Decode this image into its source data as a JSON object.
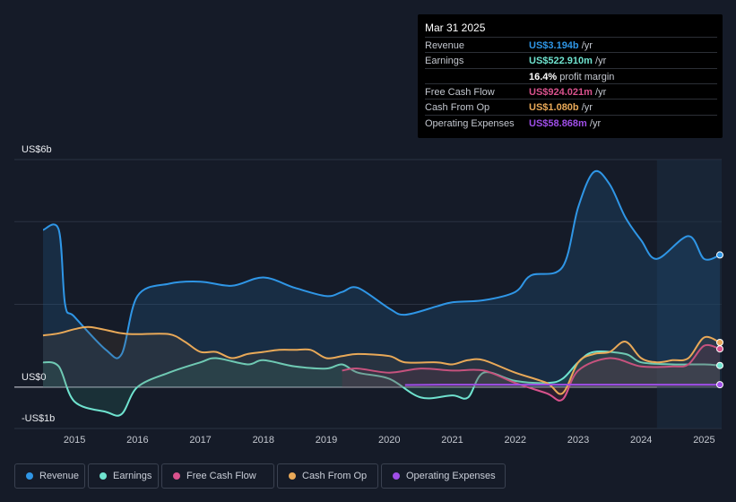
{
  "tooltip": {
    "date": "Mar 31 2025",
    "rows": [
      {
        "label": "Revenue",
        "value": "US$3.194b",
        "unit": " /yr",
        "color": "#2f96e6"
      },
      {
        "label": "Earnings",
        "value": "US$522.910m",
        "unit": " /yr",
        "color": "#6fe3cf"
      },
      {
        "label": "",
        "value": "16.4%",
        "unit": " profit margin",
        "color": "#ffffff"
      },
      {
        "label": "Free Cash Flow",
        "value": "US$924.021m",
        "unit": " /yr",
        "color": "#d9528d"
      },
      {
        "label": "Cash From Op",
        "value": "US$1.080b",
        "unit": " /yr",
        "color": "#e9a958"
      },
      {
        "label": "Operating Expenses",
        "value": "US$58.868m",
        "unit": " /yr",
        "color": "#9f4ee8"
      }
    ]
  },
  "legend": [
    {
      "label": "Revenue",
      "color": "#2f96e6"
    },
    {
      "label": "Earnings",
      "color": "#6fe3cf"
    },
    {
      "label": "Free Cash Flow",
      "color": "#d9528d"
    },
    {
      "label": "Cash From Op",
      "color": "#e9a958"
    },
    {
      "label": "Operating Expenses",
      "color": "#9f4ee8"
    }
  ],
  "chart_data": {
    "type": "area",
    "title": "",
    "xlabel": "",
    "ylabel": "",
    "y_tick_labels": [
      "US$6b",
      "US$0",
      "-US$1b"
    ],
    "x_tick_labels": [
      "2015",
      "2016",
      "2017",
      "2018",
      "2019",
      "2020",
      "2021",
      "2022",
      "2023",
      "2024",
      "2025"
    ],
    "xlim": [
      2014.5,
      2025.25
    ],
    "ylim": [
      -1,
      5.5
    ],
    "units": "US$ billions",
    "forecast_start": 2024.25,
    "series": [
      {
        "name": "Revenue",
        "color": "#2f96e6",
        "x": [
          2014.5,
          2014.75,
          2014.85,
          2015.0,
          2015.5,
          2015.75,
          2016.0,
          2016.5,
          2017.0,
          2017.5,
          2018.0,
          2018.5,
          2019.0,
          2019.25,
          2019.5,
          2020.0,
          2020.25,
          2020.75,
          2021.0,
          2021.5,
          2022.0,
          2022.25,
          2022.75,
          2023.0,
          2023.25,
          2023.5,
          2023.75,
          2024.0,
          2024.25,
          2024.75,
          2025.0,
          2025.25
        ],
        "values": [
          3.8,
          3.8,
          2.0,
          1.7,
          0.9,
          0.8,
          2.2,
          2.5,
          2.55,
          2.45,
          2.65,
          2.4,
          2.2,
          2.3,
          2.4,
          1.9,
          1.75,
          1.95,
          2.05,
          2.1,
          2.3,
          2.7,
          2.9,
          4.35,
          5.2,
          4.9,
          4.1,
          3.55,
          3.1,
          3.65,
          3.1,
          3.194
        ]
      },
      {
        "name": "Earnings",
        "color": "#6fe3cf",
        "x": [
          2014.5,
          2014.75,
          2015.0,
          2015.5,
          2015.75,
          2016.0,
          2016.5,
          2017.0,
          2017.25,
          2017.75,
          2018.0,
          2018.5,
          2019.0,
          2019.25,
          2019.5,
          2020.0,
          2020.5,
          2021.0,
          2021.25,
          2021.5,
          2022.0,
          2022.5,
          2022.75,
          2023.0,
          2023.25,
          2023.75,
          2024.0,
          2024.5,
          2025.0,
          2025.25
        ],
        "values": [
          0.6,
          0.5,
          -0.35,
          -0.6,
          -0.65,
          0.0,
          0.35,
          0.6,
          0.7,
          0.55,
          0.65,
          0.5,
          0.45,
          0.55,
          0.35,
          0.2,
          -0.25,
          -0.2,
          -0.25,
          0.35,
          0.15,
          0.1,
          0.2,
          0.6,
          0.85,
          0.8,
          0.6,
          0.55,
          0.55,
          0.523
        ]
      },
      {
        "name": "Free Cash Flow",
        "color": "#d9528d",
        "x": [
          2019.25,
          2019.5,
          2020.0,
          2020.5,
          2021.0,
          2021.5,
          2022.0,
          2022.5,
          2022.75,
          2023.0,
          2023.5,
          2024.0,
          2024.5,
          2024.75,
          2025.0,
          2025.25
        ],
        "values": [
          0.4,
          0.45,
          0.35,
          0.45,
          0.4,
          0.4,
          0.1,
          -0.15,
          -0.3,
          0.4,
          0.7,
          0.5,
          0.5,
          0.55,
          1.0,
          0.924
        ]
      },
      {
        "name": "Cash From Op",
        "color": "#e9a958",
        "x": [
          2014.5,
          2014.75,
          2015.0,
          2015.25,
          2015.75,
          2016.0,
          2016.5,
          2016.75,
          2017.0,
          2017.25,
          2017.5,
          2017.75,
          2018.0,
          2018.25,
          2018.5,
          2018.75,
          2019.0,
          2019.25,
          2019.5,
          2020.0,
          2020.25,
          2020.75,
          2021.0,
          2021.25,
          2021.5,
          2022.0,
          2022.5,
          2022.75,
          2023.0,
          2023.25,
          2023.5,
          2023.75,
          2024.0,
          2024.25,
          2024.5,
          2024.75,
          2025.0,
          2025.25
        ],
        "values": [
          1.25,
          1.3,
          1.4,
          1.45,
          1.3,
          1.28,
          1.28,
          1.1,
          0.85,
          0.85,
          0.7,
          0.8,
          0.85,
          0.9,
          0.9,
          0.9,
          0.7,
          0.75,
          0.8,
          0.75,
          0.6,
          0.6,
          0.55,
          0.65,
          0.65,
          0.35,
          0.1,
          -0.15,
          0.6,
          0.8,
          0.85,
          1.1,
          0.7,
          0.6,
          0.65,
          0.7,
          1.2,
          1.08
        ]
      },
      {
        "name": "Operating Expenses",
        "color": "#9f4ee8",
        "x": [
          2020.25,
          2021.0,
          2022.0,
          2023.0,
          2024.0,
          2025.0,
          2025.25
        ],
        "values": [
          0.05,
          0.06,
          0.06,
          0.06,
          0.06,
          0.06,
          0.059
        ]
      }
    ]
  }
}
